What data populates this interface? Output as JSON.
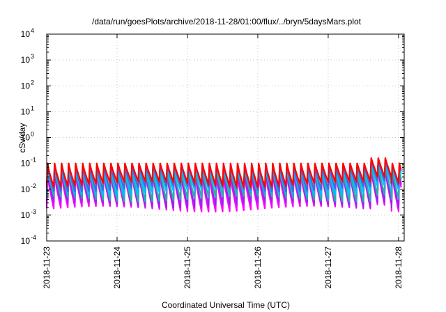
{
  "chart_data": {
    "type": "line",
    "title": "/data/run/goesPlots/archive/2018-11-28/01:00/flux/../bryn/5daysMars.plot",
    "xlabel": "Coordinated Universal Time (UTC)",
    "ylabel": "cSv/day",
    "yscale": "log",
    "ylim": [
      0.0001,
      10000
    ],
    "y_tick_exponents": [
      "-4",
      "-3",
      "-2",
      "-1",
      "0",
      "1",
      "2",
      "3",
      "4"
    ],
    "y_tick_base": "10",
    "x_tick_labels": [
      "2018-11-23",
      "2018-11-24",
      "2018-11-25",
      "2018-11-26",
      "2018-11-27",
      "2018-11-28"
    ],
    "xlim_days": [
      0,
      5.08
    ],
    "grid": true,
    "legend": "none",
    "cycle_days": 0.1,
    "series": [
      {
        "color": "#ff00ff",
        "peak": 0.05,
        "trough": 0.0018
      },
      {
        "color": "#a020f0",
        "peak": 0.06,
        "trough": 0.0026
      },
      {
        "color": "#20b2aa",
        "peak": 0.07,
        "trough": 0.0045
      },
      {
        "color": "#00bfff",
        "peak": 0.08,
        "trough": 0.008
      },
      {
        "color": "#4169e1",
        "peak": 0.09,
        "trough": 0.011
      },
      {
        "color": "#ff0000",
        "peak": 0.1,
        "trough": 0.016
      }
    ]
  }
}
